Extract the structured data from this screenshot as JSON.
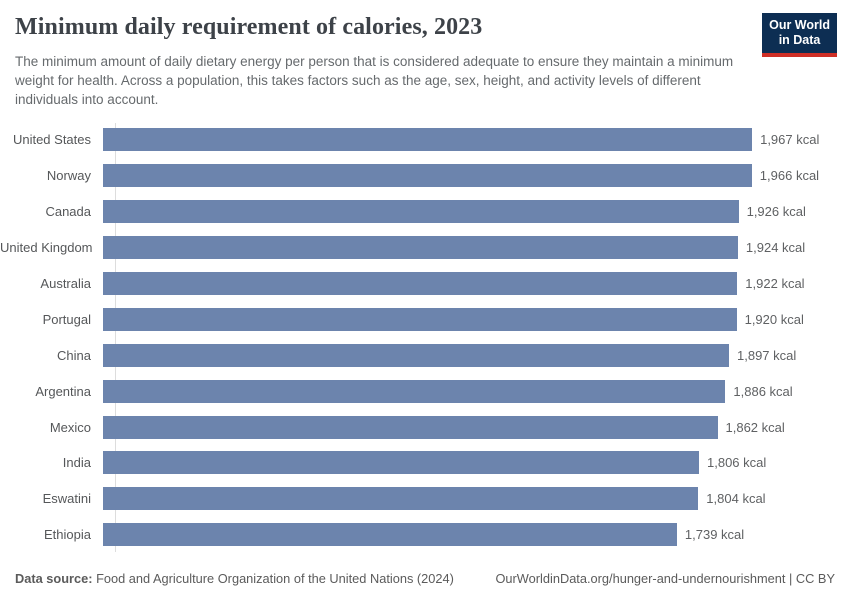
{
  "header": {
    "title": "Minimum daily requirement of calories, 2023",
    "subtitle": "The minimum amount of daily dietary energy per person that is considered adequate to ensure they maintain a minimum weight for health. Across a population, this takes factors such as the age, sex, height, and activity levels of different individuals into account.",
    "logo": {
      "line1": "Our World",
      "line2": "in Data"
    }
  },
  "chart_data": {
    "type": "bar",
    "orientation": "horizontal",
    "title": "Minimum daily requirement of calories, 2023",
    "categories": [
      "United States",
      "Norway",
      "Canada",
      "United Kingdom",
      "Australia",
      "Portugal",
      "China",
      "Argentina",
      "Mexico",
      "India",
      "Eswatini",
      "Ethiopia"
    ],
    "values": [
      1967,
      1966,
      1926,
      1924,
      1922,
      1920,
      1897,
      1886,
      1862,
      1806,
      1804,
      1739
    ],
    "value_labels": [
      "1,967 kcal",
      "1,966 kcal",
      "1,926 kcal",
      "1,924 kcal",
      "1,922 kcal",
      "1,920 kcal",
      "1,897 kcal",
      "1,886 kcal",
      "1,862 kcal",
      "1,806 kcal",
      "1,804 kcal",
      "1,739 kcal"
    ],
    "unit": "kcal",
    "xlim": [
      0,
      2000
    ],
    "grid": false,
    "legend": "none",
    "bar_color": "#6c84ad",
    "value_label_position": "right"
  },
  "footer": {
    "datasource_label": "Data source:",
    "datasource_text": " Food and Agriculture Organization of the United Nations (2024)",
    "link_text": "OurWorldinData.org/hunger-and-undernourishment | CC BY"
  },
  "colors": {
    "bar": "#6c84ad",
    "logo_background": "#0d2e53",
    "logo_accent": "#cf2f26",
    "axis_line": "#dddddd",
    "title_text": "#3d4248",
    "subtitle_text": "#666a6d"
  }
}
